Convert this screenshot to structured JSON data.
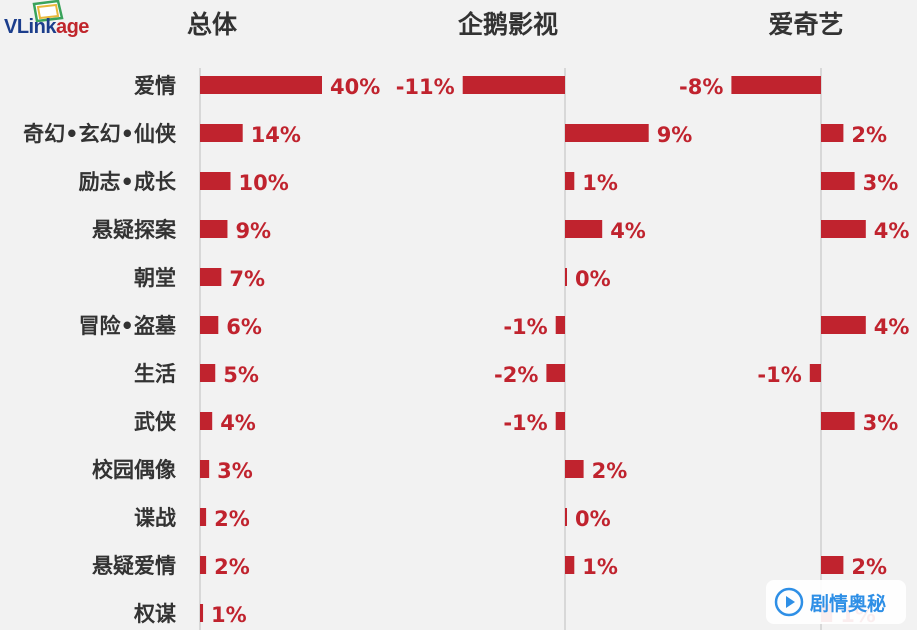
{
  "logo": {
    "text_part1": "VLink",
    "text_part2": "age"
  },
  "watermark": {
    "text": "剧情奥秘",
    "icon": "play-drop-icon"
  },
  "colors": {
    "bar": "#c0232e",
    "label": "#c0232e",
    "category": "#333333",
    "title": "#333333",
    "axis": "#bfbfbf"
  },
  "chart_data": {
    "type": "bar",
    "orientation": "horizontal",
    "categories": [
      "爱情",
      "奇幻•玄幻•仙侠",
      "励志•成长",
      "悬疑探案",
      "朝堂",
      "冒险•盗墓",
      "生活",
      "武侠",
      "校园偶像",
      "谍战",
      "悬疑爱情",
      "权谋"
    ],
    "panels": [
      {
        "title": "总体",
        "values": [
          40,
          14,
          10,
          9,
          7,
          6,
          5,
          4,
          3,
          2,
          2,
          1
        ],
        "labels": [
          "40%",
          "14%",
          "10%",
          "9%",
          "7%",
          "6%",
          "5%",
          "4%",
          "3%",
          "2%",
          "2%",
          "1%"
        ]
      },
      {
        "title": "企鹅影视",
        "values": [
          -11,
          9,
          1,
          4,
          0,
          -1,
          -2,
          -1,
          2,
          0,
          1,
          null
        ],
        "labels": [
          "-11%",
          "9%",
          "1%",
          "4%",
          "0%",
          "-1%",
          "-2%",
          "-1%",
          "2%",
          "0%",
          "1%",
          ""
        ]
      },
      {
        "title": "爱奇艺",
        "values": [
          -8,
          2,
          3,
          4,
          null,
          4,
          -1,
          3,
          null,
          null,
          2,
          1
        ],
        "labels": [
          "-8%",
          "2%",
          "3%",
          "4%",
          "",
          "4%",
          "-1%",
          "3%",
          "",
          "",
          "2%",
          "1%"
        ]
      }
    ]
  }
}
